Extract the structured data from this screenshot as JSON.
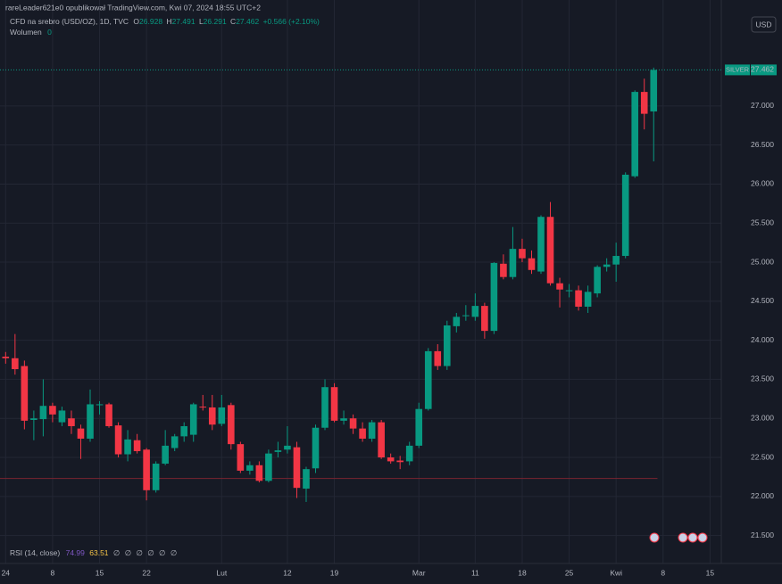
{
  "header": "rareLeader621e0 opublikował TradingView.com, Kwi 07, 2024 18:55 UTC+2",
  "symbol": "CFD na srebro (USD/OZ), 1D, TVC",
  "ohlc_legend": [
    {
      "key": "O",
      "value": "26.928"
    },
    {
      "key": "H",
      "value": "27.491"
    },
    {
      "key": "L",
      "value": "26.291"
    },
    {
      "key": "C",
      "value": "27.462"
    }
  ],
  "change": "+0.566 (+2.10%)",
  "volume": {
    "label": "Wolumen",
    "value": "0"
  },
  "currency_button": "USD",
  "rsi": {
    "label": "RSI (14, close)",
    "values": [
      "74.99",
      "63.51"
    ],
    "empty": [
      "∅",
      "∅",
      "∅",
      "∅",
      "∅",
      "∅"
    ]
  },
  "chart_data": {
    "type": "candlestick",
    "symbol_tag": "SILVER",
    "last_price": {
      "value": 27.462,
      "label": "27.462"
    },
    "price_line": 22.23,
    "up_color": "#089981",
    "down_color": "#f23645",
    "grid": true,
    "ylim": [
      21.37,
      28.22
    ],
    "yticks": [
      {
        "value": 21.5,
        "label": "21.500"
      },
      {
        "value": 22,
        "label": "22.000"
      },
      {
        "value": 22.5,
        "label": "22.500"
      },
      {
        "value": 23,
        "label": "23.000"
      },
      {
        "value": 23.5,
        "label": "23.500"
      },
      {
        "value": 24,
        "label": "24.000"
      },
      {
        "value": 24.5,
        "label": "24.500"
      },
      {
        "value": 25,
        "label": "25.000"
      },
      {
        "value": 25.5,
        "label": "25.500"
      },
      {
        "value": 26,
        "label": "26.000"
      },
      {
        "value": 26.5,
        "label": "26.500"
      },
      {
        "value": 27,
        "label": "27.000"
      }
    ],
    "xlim": [
      -0.6,
      76.2
    ],
    "xticks": [
      {
        "value": 0,
        "label": "24"
      },
      {
        "value": 5,
        "label": "8"
      },
      {
        "value": 10,
        "label": "15"
      },
      {
        "value": 15,
        "label": "22"
      },
      {
        "value": 23,
        "label": "Lut"
      },
      {
        "value": 30,
        "label": "12"
      },
      {
        "value": 35,
        "label": "19"
      },
      {
        "value": 44,
        "label": "Mar"
      },
      {
        "value": 50,
        "label": "11"
      },
      {
        "value": 55,
        "label": "18"
      },
      {
        "value": 60,
        "label": "25"
      },
      {
        "value": 65,
        "label": "Kwi"
      },
      {
        "value": 70,
        "label": "8"
      },
      {
        "value": 75,
        "label": "15"
      }
    ],
    "open": [
      23.79,
      23.77,
      23.67,
      22.98,
      22.99,
      23.16,
      22.95,
      23.0,
      22.87,
      22.74,
      23.17,
      23.18,
      22.91,
      22.54,
      22.72,
      22.6,
      22.08,
      22.42,
      22.62,
      22.77,
      22.79,
      23.15,
      23.14,
      22.93,
      23.17,
      22.67,
      22.33,
      22.4,
      22.2,
      22.57,
      22.6,
      22.63,
      22.1,
      22.36,
      22.88,
      23.4,
      22.97,
      23.0,
      22.87,
      22.74,
      22.95,
      22.5,
      22.46,
      22.45,
      22.65,
      23.12,
      23.86,
      23.67,
      24.18,
      24.31,
      24.3,
      24.44,
      24.12,
      24.98,
      24.81,
      25.17,
      25.05,
      24.88,
      25.58,
      24.73,
      24.64,
      24.64,
      24.43,
      24.6,
      24.94,
      24.97,
      25.08,
      26.1,
      27.18,
      26.93
    ],
    "high": [
      23.85,
      24.08,
      23.74,
      23.1,
      23.5,
      23.2,
      23.15,
      23.1,
      22.92,
      23.37,
      23.22,
      23.2,
      22.95,
      22.85,
      22.8,
      22.62,
      22.45,
      22.85,
      22.8,
      22.95,
      23.2,
      23.3,
      23.3,
      23.3,
      23.2,
      22.7,
      22.45,
      22.45,
      22.6,
      22.7,
      22.9,
      22.7,
      22.38,
      22.92,
      23.5,
      23.45,
      23.1,
      23.05,
      22.95,
      22.98,
      22.98,
      22.55,
      22.52,
      22.7,
      23.2,
      23.9,
      23.95,
      24.25,
      24.35,
      24.45,
      24.6,
      24.48,
      25.0,
      25.1,
      25.45,
      25.3,
      25.15,
      25.6,
      25.77,
      24.8,
      24.72,
      24.7,
      24.7,
      24.96,
      25.05,
      25.25,
      26.15,
      27.2,
      27.35,
      27.491
    ],
    "low": [
      23.7,
      23.56,
      22.86,
      22.72,
      22.77,
      22.95,
      22.9,
      22.8,
      22.48,
      22.7,
      23.05,
      22.88,
      22.5,
      22.45,
      22.55,
      21.95,
      22.05,
      22.4,
      22.58,
      22.7,
      22.7,
      23.1,
      22.85,
      22.9,
      22.6,
      22.3,
      22.28,
      22.18,
      22.18,
      22.5,
      22.55,
      21.98,
      21.93,
      22.3,
      22.85,
      22.95,
      22.92,
      22.8,
      22.7,
      22.7,
      22.48,
      22.42,
      22.35,
      22.4,
      22.62,
      23.1,
      23.62,
      23.62,
      24.1,
      24.25,
      24.25,
      24.02,
      24.08,
      24.78,
      24.78,
      25.0,
      24.85,
      24.85,
      24.7,
      24.42,
      24.55,
      24.38,
      24.35,
      24.55,
      24.88,
      24.75,
      25.05,
      26.08,
      26.7,
      26.291
    ],
    "close": [
      23.77,
      23.63,
      22.97,
      23.0,
      23.16,
      23.05,
      23.1,
      22.9,
      22.74,
      23.18,
      23.18,
      22.9,
      22.54,
      22.73,
      22.58,
      22.08,
      22.42,
      22.65,
      22.77,
      22.9,
      23.18,
      23.14,
      22.92,
      23.14,
      22.67,
      22.33,
      22.4,
      22.2,
      22.55,
      22.59,
      22.65,
      22.11,
      22.35,
      22.88,
      23.4,
      22.97,
      23.0,
      22.87,
      22.74,
      22.95,
      22.5,
      22.45,
      22.44,
      22.65,
      23.12,
      23.86,
      23.67,
      24.19,
      24.3,
      24.32,
      24.44,
      24.12,
      24.99,
      24.81,
      25.17,
      25.05,
      24.9,
      25.58,
      24.73,
      24.65,
      24.64,
      24.43,
      24.62,
      24.94,
      24.97,
      25.08,
      26.12,
      27.18,
      26.9,
      27.462
    ]
  }
}
